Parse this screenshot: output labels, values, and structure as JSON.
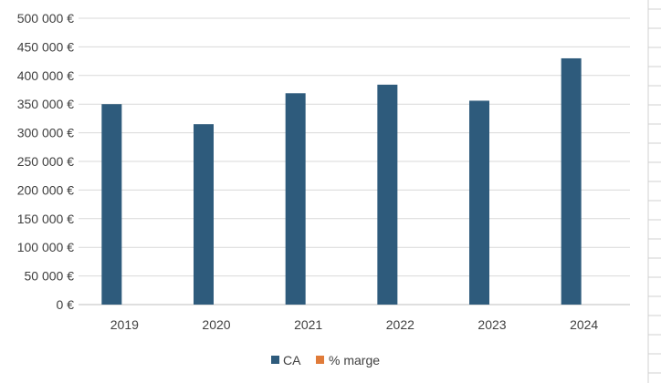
{
  "chart_data": {
    "type": "bar",
    "categories": [
      "2019",
      "2020",
      "2021",
      "2022",
      "2023",
      "2024"
    ],
    "series": [
      {
        "name": "CA",
        "values": [
          350000,
          315000,
          369000,
          384000,
          356000,
          430000
        ],
        "color": "#2e5b7c"
      },
      {
        "name": "% marge",
        "values": [
          0,
          0,
          0,
          0,
          0,
          0
        ],
        "color": "#e07b39"
      }
    ],
    "y_ticks": [
      "0 €",
      "50 000 €",
      "100 000 €",
      "150 000 €",
      "200 000 €",
      "250 000 €",
      "300 000 €",
      "350 000 €",
      "400 000 €",
      "450 000 €",
      "500 000 €"
    ],
    "ylim": [
      0,
      500000
    ],
    "grid": true,
    "legend_position": "bottom"
  }
}
